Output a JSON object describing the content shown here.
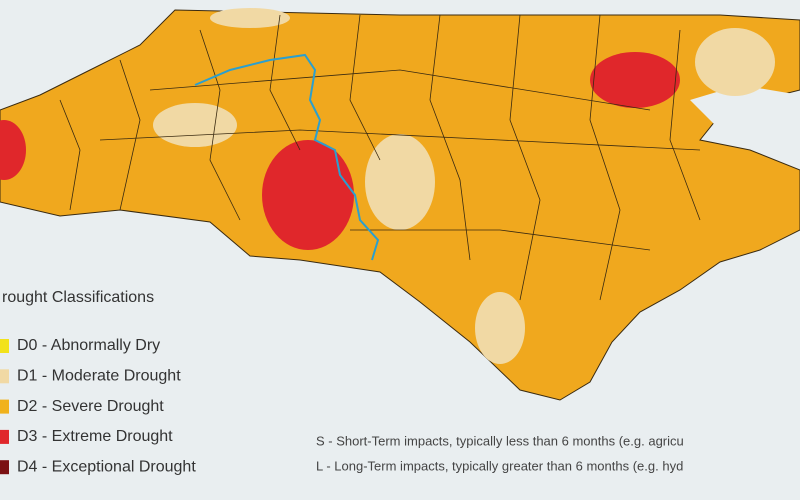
{
  "legend": {
    "title": "rought Classifications",
    "items": [
      {
        "label": "D0 - Abnormally Dry",
        "color": "#f2e21b"
      },
      {
        "label": "D1 - Moderate Drought",
        "color": "#f1d9a4"
      },
      {
        "label": "D2 - Severe Drought",
        "color": "#f0b21c"
      },
      {
        "label": "D3 - Extreme Drought",
        "color": "#e0272b"
      },
      {
        "label": "D4 - Exceptional Drought",
        "color": "#7b1113"
      }
    ]
  },
  "notes": [
    "S - Short-Term impacts, typically less than 6 months (e.g. agricu",
    "L - Long-Term impacts, typically greater than 6 months (e.g. hyd"
  ]
}
